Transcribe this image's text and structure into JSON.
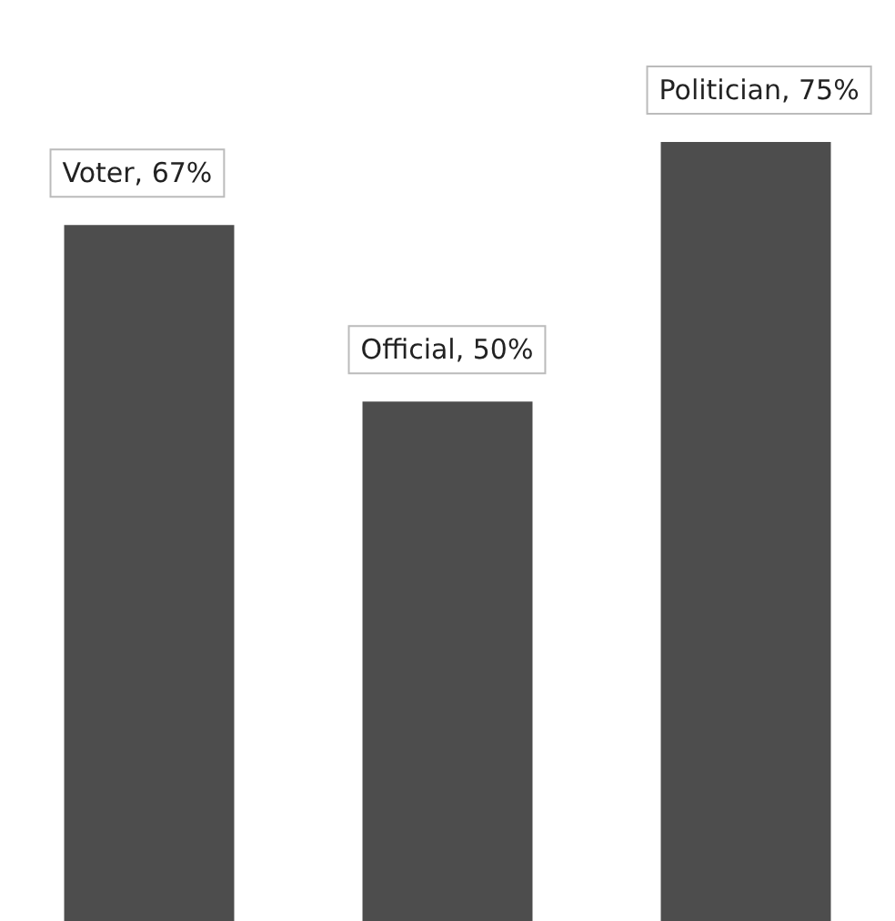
{
  "chart_data": {
    "type": "bar",
    "categories": [
      null,
      null,
      null
    ],
    "values": [
      67,
      50,
      75
    ],
    "color": "#4d4d4d",
    "value_labels": [
      "Voter, 67%",
      "Official, 50%",
      "Politician, 75%"
    ]
  }
}
